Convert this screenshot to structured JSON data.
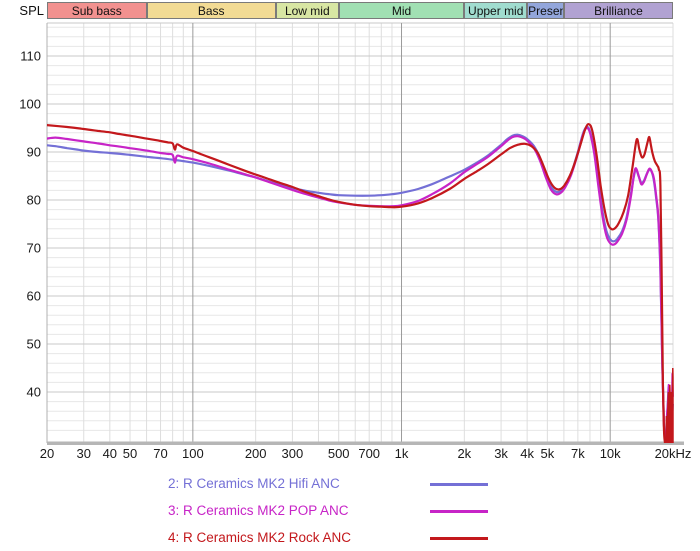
{
  "header": {
    "spl_label": "SPL"
  },
  "band_header": {
    "bands": [
      {
        "label": "Sub bass",
        "f_start": 20,
        "f_end": 60,
        "color": "#F2918F"
      },
      {
        "label": "Bass",
        "f_start": 60,
        "f_end": 250,
        "color": "#F2DB94"
      },
      {
        "label": "Low mid",
        "f_start": 250,
        "f_end": 500,
        "color": "#D8E6A3"
      },
      {
        "label": "Mid",
        "f_start": 500,
        "f_end": 2000,
        "color": "#A1E0B3"
      },
      {
        "label": "Upper mid",
        "f_start": 2000,
        "f_end": 4000,
        "color": "#A0DCCF"
      },
      {
        "label": "Presence",
        "f_start": 4000,
        "f_end": 6000,
        "color": "#93A6DB"
      },
      {
        "label": "Brilliance",
        "f_start": 6000,
        "f_end": 20000,
        "color": "#B1A2D2"
      }
    ]
  },
  "chart_data": {
    "type": "line",
    "x_scale": "log",
    "x_unit": "Hz",
    "y_unit": "dB SPL",
    "title": "",
    "xlabel": "Frequency",
    "ylabel": "SPL",
    "x_range": [
      20,
      20000
    ],
    "y_axis": {
      "major_ticks": [
        40,
        50,
        60,
        70,
        80,
        90,
        100,
        110
      ],
      "minor_step_db": 2,
      "visible_range": [
        29.4,
        116.9
      ]
    },
    "x_ticks": [
      {
        "f": 20,
        "label": "20"
      },
      {
        "f": 30,
        "label": "30"
      },
      {
        "f": 40,
        "label": "40"
      },
      {
        "f": 50,
        "label": "50"
      },
      {
        "f": 70,
        "label": "70"
      },
      {
        "f": 100,
        "label": "100"
      },
      {
        "f": 200,
        "label": "200"
      },
      {
        "f": 300,
        "label": "300"
      },
      {
        "f": 500,
        "label": "500"
      },
      {
        "f": 700,
        "label": "700"
      },
      {
        "f": 1000,
        "label": "1k"
      },
      {
        "f": 2000,
        "label": "2k"
      },
      {
        "f": 3000,
        "label": "3k"
      },
      {
        "f": 4000,
        "label": "4k"
      },
      {
        "f": 5000,
        "label": "5k"
      },
      {
        "f": 7000,
        "label": "7k"
      },
      {
        "f": 10000,
        "label": "10k"
      },
      {
        "f": 20000,
        "label": "20kHz"
      }
    ],
    "decade_gridlines": [
      100,
      1000,
      10000
    ],
    "series": [
      {
        "name": "2: R Ceramics MK2 Hifi ANC",
        "color": "#7470D6",
        "points": [
          [
            20,
            91.4
          ],
          [
            22,
            91.2
          ],
          [
            25,
            90.8
          ],
          [
            28,
            90.5
          ],
          [
            30,
            90.3
          ],
          [
            35,
            90.0
          ],
          [
            40,
            89.8
          ],
          [
            45,
            89.6
          ],
          [
            50,
            89.4
          ],
          [
            60,
            89.0
          ],
          [
            70,
            88.7
          ],
          [
            80,
            88.4
          ],
          [
            90,
            88.1
          ],
          [
            100,
            87.8
          ],
          [
            120,
            87.1
          ],
          [
            150,
            86.1
          ],
          [
            180,
            85.2
          ],
          [
            200,
            84.7
          ],
          [
            230,
            83.9
          ],
          [
            260,
            83.2
          ],
          [
            300,
            82.5
          ],
          [
            350,
            81.9
          ],
          [
            400,
            81.5
          ],
          [
            450,
            81.2
          ],
          [
            500,
            81.0
          ],
          [
            600,
            80.9
          ],
          [
            700,
            80.9
          ],
          [
            800,
            81.0
          ],
          [
            900,
            81.2
          ],
          [
            1000,
            81.5
          ],
          [
            1200,
            82.3
          ],
          [
            1400,
            83.3
          ],
          [
            1700,
            84.9
          ],
          [
            2000,
            86.3
          ],
          [
            2300,
            87.8
          ],
          [
            2600,
            89.3
          ],
          [
            3000,
            91.5
          ],
          [
            3200,
            92.6
          ],
          [
            3400,
            93.4
          ],
          [
            3600,
            93.6
          ],
          [
            3800,
            93.3
          ],
          [
            4000,
            92.7
          ],
          [
            4300,
            91.3
          ],
          [
            4600,
            88.9
          ],
          [
            4900,
            85.5
          ],
          [
            5200,
            82.8
          ],
          [
            5500,
            81.7
          ],
          [
            5800,
            81.9
          ],
          [
            6100,
            83.0
          ],
          [
            6500,
            85.5
          ],
          [
            7000,
            90.0
          ],
          [
            7400,
            93.8
          ],
          [
            7700,
            95.2
          ],
          [
            8000,
            94.3
          ],
          [
            8400,
            90.0
          ],
          [
            8800,
            83.5
          ],
          [
            9200,
            77.5
          ],
          [
            9600,
            73.5
          ],
          [
            10000,
            71.8
          ],
          [
            10400,
            71.4
          ],
          [
            10800,
            71.9
          ],
          [
            11400,
            73.5
          ],
          [
            12000,
            76.5
          ],
          [
            12600,
            81.5
          ],
          [
            13000,
            85.0
          ],
          [
            13300,
            86.4
          ],
          [
            13700,
            84.9
          ],
          [
            14100,
            83.6
          ],
          [
            14500,
            84.0
          ],
          [
            15000,
            85.5
          ],
          [
            15400,
            86.3
          ],
          [
            15800,
            85.9
          ],
          [
            16200,
            84.0
          ],
          [
            16600,
            80.5
          ],
          [
            17000,
            76.0
          ],
          [
            17400,
            65.0
          ],
          [
            17800,
            45.0
          ],
          [
            18100,
            33.0
          ],
          [
            18400,
            30.0
          ]
        ]
      },
      {
        "name": "3: R Ceramics MK2 POP ANC",
        "color": "#C724C7",
        "points": [
          [
            20,
            92.8
          ],
          [
            22,
            93.0
          ],
          [
            25,
            92.7
          ],
          [
            30,
            92.2
          ],
          [
            35,
            91.8
          ],
          [
            40,
            91.4
          ],
          [
            45,
            91.1
          ],
          [
            50,
            90.8
          ],
          [
            60,
            90.3
          ],
          [
            70,
            89.8
          ],
          [
            76,
            89.6
          ],
          [
            80,
            89.4
          ],
          [
            82,
            87.8
          ],
          [
            84,
            89.2
          ],
          [
            90,
            88.9
          ],
          [
            100,
            88.5
          ],
          [
            120,
            87.6
          ],
          [
            150,
            86.3
          ],
          [
            180,
            85.3
          ],
          [
            200,
            84.7
          ],
          [
            230,
            83.8
          ],
          [
            260,
            83.0
          ],
          [
            300,
            82.1
          ],
          [
            350,
            81.2
          ],
          [
            400,
            80.5
          ],
          [
            450,
            79.9
          ],
          [
            500,
            79.5
          ],
          [
            600,
            79.0
          ],
          [
            700,
            78.8
          ],
          [
            800,
            78.7
          ],
          [
            900,
            78.7
          ],
          [
            1000,
            78.9
          ],
          [
            1200,
            79.8
          ],
          [
            1400,
            81.2
          ],
          [
            1700,
            83.4
          ],
          [
            2000,
            85.8
          ],
          [
            2300,
            87.5
          ],
          [
            2600,
            89.0
          ],
          [
            3000,
            91.2
          ],
          [
            3200,
            92.3
          ],
          [
            3400,
            93.1
          ],
          [
            3600,
            93.3
          ],
          [
            3800,
            93.0
          ],
          [
            4000,
            92.4
          ],
          [
            4300,
            90.9
          ],
          [
            4600,
            88.3
          ],
          [
            4900,
            84.9
          ],
          [
            5200,
            82.2
          ],
          [
            5500,
            81.2
          ],
          [
            5800,
            81.5
          ],
          [
            6100,
            82.7
          ],
          [
            6500,
            85.2
          ],
          [
            7000,
            89.7
          ],
          [
            7400,
            93.5
          ],
          [
            7700,
            95.0
          ],
          [
            8000,
            94.0
          ],
          [
            8400,
            89.5
          ],
          [
            8800,
            82.5
          ],
          [
            9200,
            76.5
          ],
          [
            9600,
            72.5
          ],
          [
            10000,
            71.0
          ],
          [
            10400,
            70.7
          ],
          [
            10800,
            71.3
          ],
          [
            11400,
            73.0
          ],
          [
            12000,
            76.0
          ],
          [
            12600,
            81.0
          ],
          [
            13000,
            85.3
          ],
          [
            13300,
            86.6
          ],
          [
            13700,
            85.0
          ],
          [
            14100,
            83.3
          ],
          [
            14500,
            83.8
          ],
          [
            15000,
            85.4
          ],
          [
            15400,
            86.5
          ],
          [
            15800,
            86.0
          ],
          [
            16200,
            84.5
          ],
          [
            16600,
            81.0
          ],
          [
            17000,
            76.5
          ],
          [
            17400,
            66.0
          ],
          [
            17800,
            45.0
          ],
          [
            18100,
            33.0
          ],
          [
            18400,
            30.0
          ]
        ]
      },
      {
        "name": "4: R Ceramics MK2 Rock ANC",
        "color": "#C3181C",
        "points": [
          [
            20,
            95.6
          ],
          [
            25,
            95.2
          ],
          [
            30,
            94.8
          ],
          [
            35,
            94.4
          ],
          [
            40,
            94.1
          ],
          [
            45,
            93.7
          ],
          [
            50,
            93.4
          ],
          [
            60,
            92.8
          ],
          [
            70,
            92.3
          ],
          [
            76,
            92.0
          ],
          [
            80,
            91.8
          ],
          [
            82,
            90.5
          ],
          [
            84,
            91.6
          ],
          [
            90,
            90.9
          ],
          [
            100,
            90.2
          ],
          [
            110,
            89.5
          ],
          [
            120,
            88.9
          ],
          [
            150,
            87.3
          ],
          [
            180,
            86.0
          ],
          [
            200,
            85.3
          ],
          [
            230,
            84.4
          ],
          [
            260,
            83.6
          ],
          [
            300,
            82.7
          ],
          [
            350,
            81.6
          ],
          [
            400,
            80.8
          ],
          [
            450,
            80.1
          ],
          [
            500,
            79.6
          ],
          [
            600,
            79.0
          ],
          [
            700,
            78.7
          ],
          [
            800,
            78.6
          ],
          [
            900,
            78.5
          ],
          [
            1000,
            78.6
          ],
          [
            1200,
            79.3
          ],
          [
            1400,
            80.4
          ],
          [
            1700,
            82.3
          ],
          [
            2000,
            84.4
          ],
          [
            2300,
            86.0
          ],
          [
            2600,
            87.5
          ],
          [
            3000,
            89.5
          ],
          [
            3300,
            90.8
          ],
          [
            3600,
            91.5
          ],
          [
            3900,
            91.7
          ],
          [
            4200,
            91.2
          ],
          [
            4500,
            89.8
          ],
          [
            4800,
            87.0
          ],
          [
            5100,
            84.2
          ],
          [
            5400,
            82.6
          ],
          [
            5700,
            82.2
          ],
          [
            6000,
            82.9
          ],
          [
            6400,
            85.0
          ],
          [
            6800,
            88.0
          ],
          [
            7200,
            91.5
          ],
          [
            7600,
            94.8
          ],
          [
            7900,
            95.8
          ],
          [
            8200,
            94.5
          ],
          [
            8600,
            89.5
          ],
          [
            9000,
            83.0
          ],
          [
            9400,
            78.0
          ],
          [
            9800,
            74.8
          ],
          [
            10200,
            73.9
          ],
          [
            10600,
            74.2
          ],
          [
            11000,
            75.2
          ],
          [
            11600,
            77.5
          ],
          [
            12200,
            81.0
          ],
          [
            12800,
            87.0
          ],
          [
            13400,
            92.6
          ],
          [
            13800,
            90.5
          ],
          [
            14200,
            88.9
          ],
          [
            14600,
            89.5
          ],
          [
            15100,
            92.0
          ],
          [
            15400,
            93.1
          ],
          [
            15700,
            91.2
          ],
          [
            16000,
            89.5
          ],
          [
            16400,
            88.0
          ],
          [
            16800,
            87.2
          ],
          [
            17100,
            86.4
          ],
          [
            17400,
            83.0
          ],
          [
            17700,
            60.0
          ],
          [
            17900,
            42.0
          ],
          [
            18100,
            32.0
          ],
          [
            18300,
            29.5
          ]
        ]
      }
    ],
    "noise_tail": [
      {
        "name": "hifi-noise",
        "color": "#7470D6",
        "fill": false,
        "points": [
          [
            18700,
            35
          ],
          [
            19000,
            41
          ],
          [
            19200,
            35
          ],
          [
            19500,
            37
          ],
          [
            19800,
            34
          ],
          [
            20000,
            37.5
          ]
        ]
      },
      {
        "name": "pop-noise",
        "color": "#C724C7",
        "fill": false,
        "points": [
          [
            18600,
            34
          ],
          [
            18900,
            38
          ],
          [
            19050,
            41.5
          ],
          [
            19200,
            36
          ],
          [
            19500,
            38
          ],
          [
            19700,
            34
          ],
          [
            19850,
            43.8
          ],
          [
            20000,
            39
          ]
        ]
      },
      {
        "name": "rock-noise",
        "color": "#C3181C",
        "fill": true,
        "points": [
          [
            18500,
            29
          ],
          [
            18600,
            35
          ],
          [
            18750,
            33
          ],
          [
            18900,
            37
          ],
          [
            19000,
            40
          ],
          [
            19150,
            36
          ],
          [
            19300,
            41.5
          ],
          [
            19450,
            37
          ],
          [
            19600,
            40
          ],
          [
            19750,
            37
          ],
          [
            19850,
            39
          ],
          [
            19950,
            45
          ],
          [
            20000,
            43
          ]
        ]
      }
    ]
  },
  "legend_note": "legend labels are bound from chart_data.series names"
}
